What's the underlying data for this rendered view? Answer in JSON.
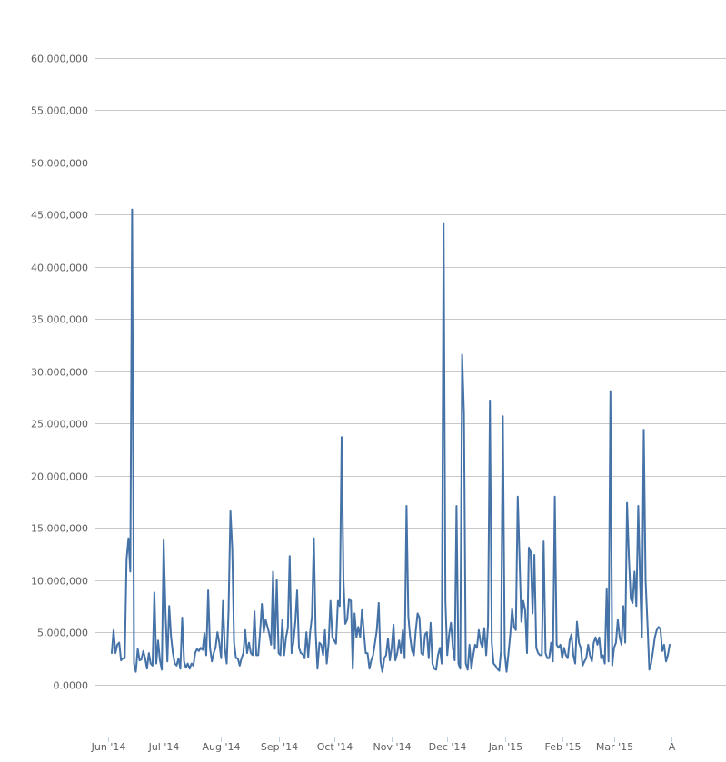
{
  "chart_data": {
    "type": "line",
    "title": "",
    "xlabel": "",
    "ylabel": "",
    "x_start": "2014-06-01",
    "ylim": [
      -5000000,
      60000000
    ],
    "y_ticks": [
      0,
      5000000,
      10000000,
      15000000,
      20000000,
      25000000,
      30000000,
      35000000,
      40000000,
      45000000,
      50000000,
      55000000,
      60000000
    ],
    "y_tick_labels": [
      "0.0000",
      "5,000,000",
      "10,000,000",
      "15,000,000",
      "20,000,000",
      "25,000,000",
      "30,000,000",
      "35,000,000",
      "40,000,000",
      "45,000,000",
      "50,000,000",
      "55,000,000",
      "60,000,000"
    ],
    "x_tick_labels": [
      {
        "date": "2014-06-01",
        "label": "Jun '14"
      },
      {
        "date": "2014-07-01",
        "label": "Jul '14"
      },
      {
        "date": "2014-08-01",
        "label": "Aug '14"
      },
      {
        "date": "2014-09-01",
        "label": "Sep '14"
      },
      {
        "date": "2014-10-01",
        "label": "Oct '14"
      },
      {
        "date": "2014-11-01",
        "label": "Nov '14"
      },
      {
        "date": "2014-12-01",
        "label": "Dec '14"
      },
      {
        "date": "2015-01-01",
        "label": "Jan '15"
      },
      {
        "date": "2015-02-01",
        "label": "Feb '15"
      },
      {
        "date": "2015-03-01",
        "label": "Mar '15"
      },
      {
        "date": "2015-04-01",
        "label": "A"
      }
    ],
    "grid": true,
    "legend": "none",
    "series_color": "#4572a7",
    "series": [
      {
        "values": [
          3000000,
          5200000,
          3000000,
          3800000,
          4000000,
          2300000,
          2500000,
          2500000,
          12000000,
          14000000,
          10800000,
          45500000,
          2000000,
          1200000,
          3400000,
          2300000,
          2400000,
          3200000,
          2500000,
          1500000,
          3000000,
          2000000,
          1800000,
          8800000,
          2000000,
          4200000,
          2300000,
          1400000,
          13800000,
          6800000,
          2200000,
          7500000,
          4500000,
          3000000,
          2000000,
          1800000,
          2500000,
          1500000,
          6400000,
          2200000,
          1600000,
          2000000,
          1500000,
          2000000,
          1800000,
          3000000,
          3400000,
          3200000,
          3500000,
          3300000,
          4900000,
          2800000,
          9000000,
          3500000,
          2200000,
          3000000,
          3500000,
          5000000,
          4000000,
          2500000,
          8000000,
          3500000,
          2000000,
          7000000,
          16600000,
          13000000,
          4000000,
          2500000,
          2500000,
          1800000,
          2500000,
          3000000,
          5200000,
          3000000,
          4000000,
          3000000,
          2800000,
          7000000,
          2800000,
          2800000,
          5000000,
          7700000,
          5000000,
          6200000,
          5500000,
          4800000,
          3800000,
          10800000,
          3400000,
          10000000,
          3000000,
          2800000,
          6200000,
          2800000,
          4500000,
          5400000,
          12300000,
          3000000,
          4000000,
          6000000,
          9000000,
          3500000,
          3000000,
          2900000,
          2500000,
          5000000,
          2600000,
          5000000,
          6500000,
          14000000,
          5000000,
          1500000,
          4000000,
          3800000,
          2800000,
          5200000,
          2000000,
          4000000,
          8000000,
          4500000,
          4200000,
          3900000,
          8000000,
          7500000,
          23700000,
          10000000,
          5800000,
          6200000,
          8200000,
          8000000,
          1500000,
          6800000,
          4500000,
          5500000,
          4500000,
          7200000,
          5000000,
          3000000,
          3000000,
          1500000,
          2300000,
          2800000,
          4000000,
          5200000,
          7800000,
          2200000,
          1200000,
          2500000,
          2800000,
          4400000,
          2300000,
          3500000,
          5700000,
          2300000,
          3000000,
          4200000,
          3000000,
          5200000,
          2500000,
          17100000,
          6500000,
          4500000,
          3200000,
          2800000,
          5200000,
          6800000,
          6400000,
          3000000,
          2800000,
          4800000,
          5000000,
          2500000,
          5900000,
          2000000,
          1500000,
          1400000,
          2800000,
          3500000,
          2000000,
          44200000,
          8000000,
          2800000,
          4800000,
          5900000,
          3500000,
          2300000,
          17100000,
          2000000,
          1500000,
          31600000,
          26000000,
          2000000,
          1400000,
          3800000,
          1500000,
          2800000,
          3800000,
          3500000,
          5200000,
          4000000,
          3500000,
          5400000,
          2800000,
          5700000,
          27200000,
          4000000,
          2000000,
          1800000,
          1500000,
          1300000,
          3200000,
          25700000,
          3000000,
          1200000,
          3000000,
          4800000,
          7300000,
          5500000,
          5200000,
          18000000,
          12000000,
          6000000,
          8000000,
          7200000,
          3000000,
          13100000,
          12700000,
          6800000,
          12400000,
          3500000,
          3000000,
          2800000,
          2800000,
          13700000,
          3000000,
          2500000,
          2500000,
          4000000,
          2200000,
          18000000,
          3800000,
          3500000,
          3800000,
          2500000,
          3500000,
          2800000,
          2500000,
          4200000,
          4800000,
          2800000,
          2000000,
          6000000,
          4000000,
          3500000,
          1800000,
          2200000,
          2500000,
          3800000,
          2800000,
          2200000,
          4000000,
          4500000,
          3800000,
          4500000,
          2500000,
          2800000,
          2000000,
          9200000,
          2200000,
          28100000,
          1800000,
          3500000,
          4000000,
          6200000,
          4500000,
          3800000,
          7500000,
          4000000,
          17400000,
          12000000,
          8200000,
          7800000,
          10800000,
          7500000,
          17100000,
          10000000,
          4500000,
          24400000,
          10000000,
          5800000,
          1400000,
          2000000,
          3200000,
          4500000,
          5200000,
          5500000,
          5300000,
          3200000,
          3800000,
          2200000,
          2800000,
          3800000
        ]
      }
    ]
  }
}
